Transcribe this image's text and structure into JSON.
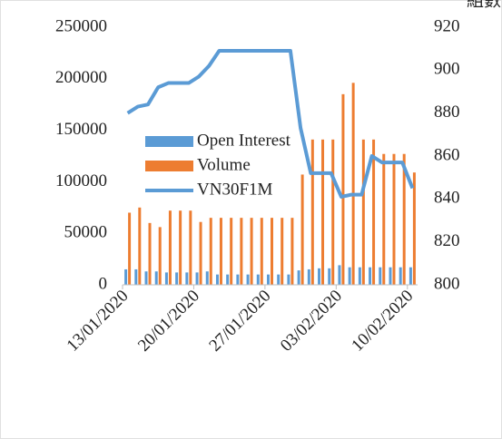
{
  "chart_data": {
    "type": "bar",
    "y2_label": "組數",
    "categories": [
      "13/01/2020",
      null,
      null,
      null,
      null,
      null,
      null,
      "20/01/2020",
      null,
      null,
      null,
      null,
      null,
      null,
      "27/01/2020",
      null,
      null,
      null,
      null,
      null,
      null,
      "03/02/2020",
      null,
      null,
      null,
      null,
      null,
      null,
      "10/02/2020"
    ],
    "series": [
      {
        "name": "Open Interest",
        "type": "bar",
        "color": "#5b9bd5",
        "values": [
          15000,
          15000,
          13000,
          13000,
          12000,
          12000,
          12000,
          12000,
          13000,
          10000,
          10000,
          10000,
          10000,
          10000,
          10000,
          10000,
          10000,
          14000,
          15000,
          16000,
          16000,
          19000,
          17000,
          17000,
          17000,
          17000,
          17000,
          17000,
          17000
        ]
      },
      {
        "name": "Volume",
        "type": "bar",
        "color": "#ed7d31",
        "values": [
          70000,
          75000,
          60000,
          56000,
          72000,
          72000,
          72000,
          61000,
          65000,
          65000,
          65000,
          65000,
          65000,
          65000,
          65000,
          65000,
          65000,
          107000,
          141000,
          141000,
          141000,
          185000,
          196000,
          141000,
          141000,
          127000,
          127000,
          127000,
          109000
        ]
      },
      {
        "name": "VN30F1M",
        "type": "line",
        "axis": "y2",
        "color": "#5b9bd5",
        "values": [
          880,
          883,
          884,
          892,
          894,
          894,
          894,
          897,
          902,
          909,
          909,
          909,
          909,
          909,
          909,
          909,
          909,
          873,
          852,
          852,
          852,
          841,
          842,
          842,
          860,
          857,
          857,
          857,
          845
        ]
      }
    ],
    "ylim": [
      0,
      250000
    ],
    "yticks": [
      0,
      50000,
      100000,
      150000,
      200000,
      250000
    ],
    "y2lim": [
      800,
      920
    ],
    "y2ticks": [
      800,
      820,
      840,
      860,
      880,
      900,
      920
    ]
  }
}
